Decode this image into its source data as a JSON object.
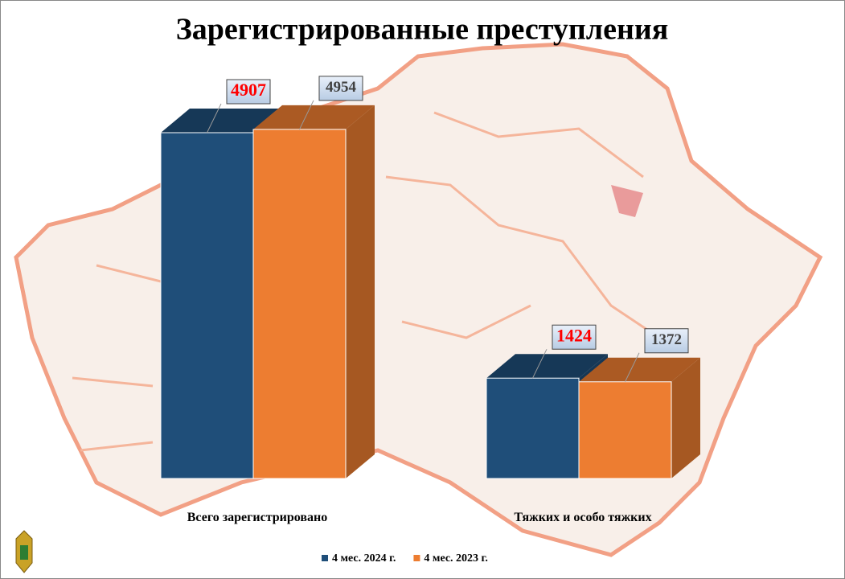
{
  "chart_data": {
    "type": "bar3d",
    "title": "Зарегистрированные преступления",
    "categories": [
      "Всего зарегистрировано",
      "Тяжких и особо тяжких"
    ],
    "series": [
      {
        "name": "4 мес. 2024 г.",
        "color": "#1f4e79",
        "label_color": "#ff0000",
        "values": [
          4907,
          1424
        ]
      },
      {
        "name": "4 мес. 2023 г.",
        "color": "#ed7d31",
        "label_color": "#404040",
        "values": [
          4954,
          1372
        ]
      }
    ],
    "legend": "bottom"
  }
}
